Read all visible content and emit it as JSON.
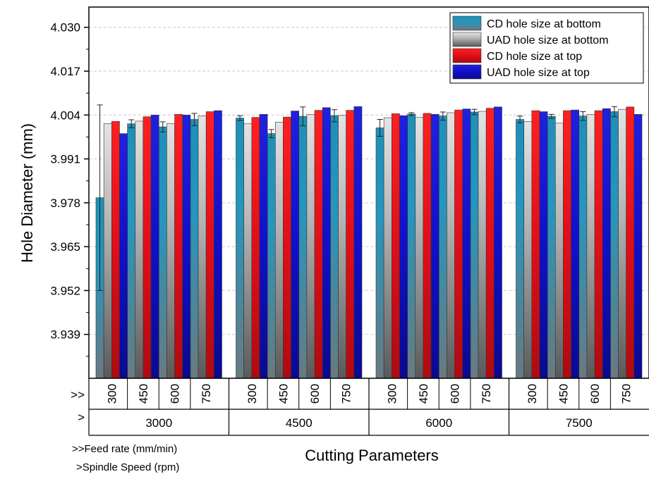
{
  "chart_data": {
    "type": "bar",
    "ylabel": "Hole Diameter (mm)",
    "xlabel": "Cutting Parameters",
    "ylim": [
      3.926,
      4.036
    ],
    "yticks": [
      "4.030",
      "4.017",
      "4.004",
      "3.991",
      "3.978",
      "3.965",
      "3.952",
      "3.939"
    ],
    "grid": "horizontal dashed",
    "legend_position": "top-right",
    "legend": [
      "CD hole size at bottom",
      "UAD hole size at bottom",
      "CD hole size at top",
      "UAD hole size at top"
    ],
    "colors": [
      "#2596be",
      "#b4b4b4",
      "#e8101a",
      "#1010c8"
    ],
    "feed_row_marker": ">>",
    "speed_row_marker": ">",
    "feed_rates": [
      "300",
      "450",
      "600",
      "750"
    ],
    "spindle_speeds": [
      "3000",
      "4500",
      "6000",
      "7500"
    ],
    "feed_note": ">>Feed rate (mm/min)",
    "speed_note": ">Spindle Speed (rpm)",
    "series": [
      {
        "name": "CD hole size at bottom",
        "values": [
          3.9795,
          4.0014,
          4.0005,
          4.0027,
          4.0031,
          3.9985,
          4.0036,
          4.0038,
          4.0002,
          4.0043,
          4.0037,
          4.0049,
          4.0027,
          4.0036,
          4.0037,
          4.005
        ],
        "errors": [
          0.0275,
          0.0012,
          0.0015,
          0.0018,
          0.0007,
          0.0012,
          0.0028,
          0.0018,
          0.0025,
          0.0004,
          0.0012,
          0.0008,
          0.001,
          0.0006,
          0.0013,
          0.0015
        ]
      },
      {
        "name": "UAD hole size at bottom",
        "values": [
          4.0015,
          4.0022,
          4.0015,
          4.0037,
          4.0014,
          4.0019,
          4.0042,
          4.0039,
          4.0032,
          4.0033,
          4.0047,
          4.0051,
          4.0021,
          4.0016,
          4.0042,
          4.0057
        ]
      },
      {
        "name": "CD hole size at top",
        "values": [
          4.0021,
          4.0035,
          4.0042,
          4.005,
          4.0033,
          4.0034,
          4.0054,
          4.0054,
          4.0044,
          4.0045,
          4.0055,
          4.006,
          4.0053,
          4.0053,
          4.0053,
          4.0064
        ]
      },
      {
        "name": "UAD hole size at top",
        "values": [
          3.9985,
          4.004,
          4.004,
          4.0053,
          4.0042,
          4.0052,
          4.0062,
          4.0065,
          4.0038,
          4.0042,
          4.0058,
          4.0064,
          4.005,
          4.0055,
          4.0059,
          4.0042
        ]
      }
    ]
  }
}
